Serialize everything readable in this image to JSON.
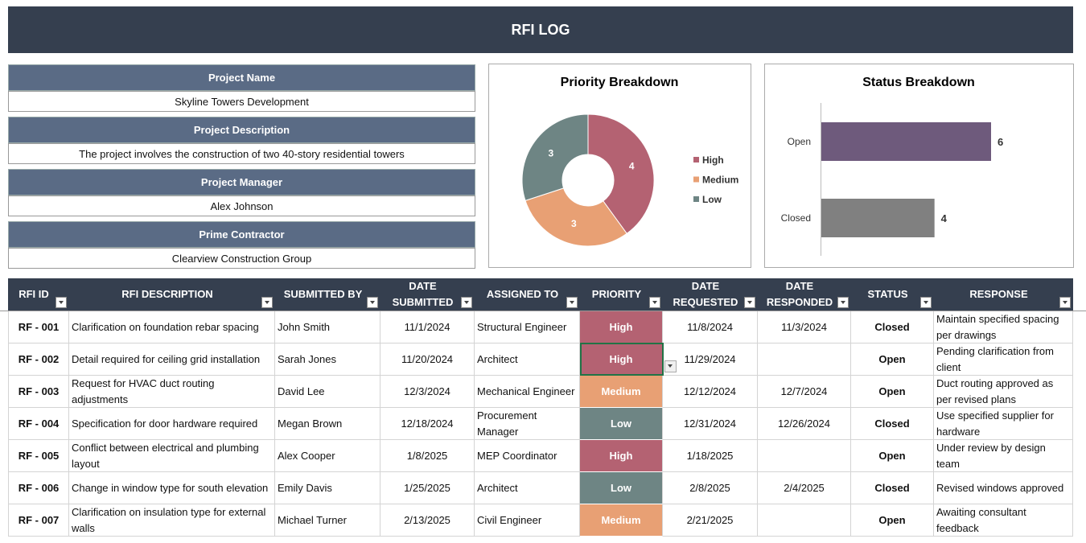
{
  "header": {
    "title": "RFI LOG"
  },
  "project": [
    {
      "label": "Project Name",
      "value": "Skyline Towers Development"
    },
    {
      "label": "Project Description",
      "value": "The project involves the construction of two 40-story residential towers"
    },
    {
      "label": "Project Manager",
      "value": "Alex Johnson"
    },
    {
      "label": "Prime Contractor",
      "value": "Clearview Construction Group"
    }
  ],
  "chart_data": [
    {
      "type": "pie",
      "title": "Priority Breakdown",
      "categories": [
        "High",
        "Medium",
        "Low"
      ],
      "values": [
        4,
        3,
        3
      ],
      "colors": [
        "#b46272",
        "#e8a074",
        "#6e8584"
      ],
      "donut": true,
      "legend": "right"
    },
    {
      "type": "bar",
      "orientation": "horizontal",
      "title": "Status Breakdown",
      "categories": [
        "Open",
        "Closed"
      ],
      "values": [
        6,
        4
      ],
      "colors": [
        "#6e5a7c",
        "#808080"
      ]
    }
  ],
  "table": {
    "columns": [
      "RFI ID",
      "RFI DESCRIPTION",
      "SUBMITTED BY",
      "DATE SUBMITTED",
      "ASSIGNED TO",
      "PRIORITY",
      "DATE REQUESTED",
      "DATE RESPONDED",
      "STATUS",
      "RESPONSE"
    ],
    "rows": [
      [
        "RF - 001",
        "Clarification on foundation rebar spacing",
        "John Smith",
        "11/1/2024",
        "Structural Engineer",
        "High",
        "11/8/2024",
        "11/3/2024",
        "Closed",
        "Maintain specified spacing per drawings"
      ],
      [
        "RF - 002",
        "Detail required for ceiling grid installation",
        "Sarah Jones",
        "11/20/2024",
        "Architect",
        "High",
        "11/29/2024",
        null,
        "Open",
        "Pending clarification from client"
      ],
      [
        "RF - 003",
        "Request for HVAC duct routing adjustments",
        "David Lee",
        "12/3/2024",
        "Mechanical Engineer",
        "Medium",
        "12/12/2024",
        "12/7/2024",
        "Open",
        "Duct routing approved as per revised plans"
      ],
      [
        "RF - 004",
        "Specification for door hardware required",
        "Megan Brown",
        "12/18/2024",
        "Procurement Manager",
        "Low",
        "12/31/2024",
        "12/26/2024",
        "Closed",
        "Use specified supplier for hardware"
      ],
      [
        "RF - 005",
        "Conflict between electrical and plumbing layout",
        "Alex Cooper",
        "1/8/2025",
        "MEP Coordinator",
        "High",
        "1/18/2025",
        null,
        "Open",
        "Under review by design team"
      ],
      [
        "RF - 006",
        "Change in window type for south elevation",
        "Emily Davis",
        "1/25/2025",
        "Architect",
        "Low",
        "2/8/2025",
        "2/4/2025",
        "Closed",
        "Revised windows approved"
      ],
      [
        "RF - 007",
        "Clarification on insulation type for external walls",
        "Michael Turner",
        "2/13/2025",
        "Civil Engineer",
        "Medium",
        "2/21/2025",
        null,
        "Open",
        "Awaiting consultant feedback"
      ]
    ]
  }
}
